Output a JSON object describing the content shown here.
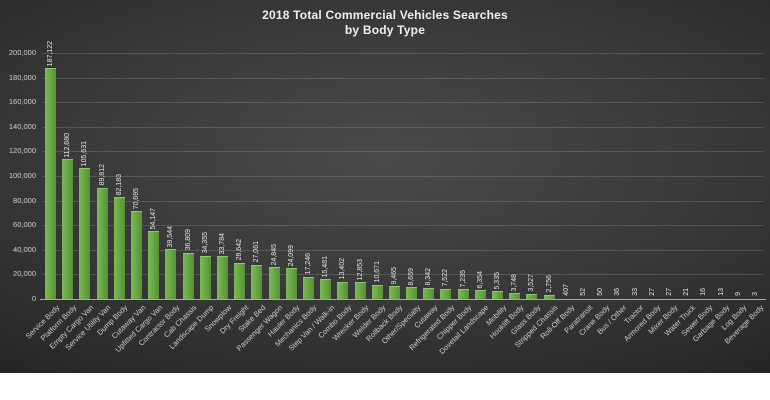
{
  "chart_data": {
    "type": "bar",
    "title_line1": "2018 Total Commercial Vehicles Searches",
    "title_line2": "by Body Type",
    "xlabel": "",
    "ylabel": "",
    "ylim": [
      0,
      200000
    ],
    "ytick_interval": 20000,
    "grid": true,
    "legend": "none",
    "bar_color": "#6AAA45",
    "background_color": "#3a3a3a",
    "text_color": "#cfcfcf",
    "categories": [
      "Service Body",
      "Platform Body",
      "Empty Cargo Van",
      "Service Utility Van",
      "Dump Body",
      "Cutaway Van",
      "Upfitted Cargo Van",
      "Contractor Body",
      "Cab Chassis",
      "Landscape Dump",
      "Snowplow",
      "Dry Freight",
      "Stake Bed",
      "Passenger Wagon",
      "Hauler Body",
      "Mechanics Body",
      "Step Van / Walk-in",
      "Combo Body",
      "Wrecker Body",
      "Welder Body",
      "Rollback Body",
      "Other/Specialty",
      "Cutaway",
      "Refrigerated Body",
      "Chipper Body",
      "Dovetail Landscape",
      "Mobility",
      "Hooklift Body",
      "Glass Body",
      "Stripped Chassis",
      "Roll-Off Body",
      "Paratransit",
      "Crane Body",
      "Bus / Other",
      "Tractor",
      "Armored Body",
      "Mixer Body",
      "Water Truck",
      "Sewer Body",
      "Garbage Body",
      "Log Body",
      "Beverage Body"
    ],
    "values": [
      187122,
      112680,
      105631,
      89812,
      82183,
      70695,
      54147,
      39544,
      36809,
      34355,
      33784,
      28642,
      27061,
      24845,
      24099,
      17246,
      15481,
      13402,
      12853,
      10671,
      9465,
      8659,
      8342,
      7522,
      7235,
      6354,
      5335,
      3748,
      3527,
      2756,
      407,
      52,
      50,
      36,
      33,
      27,
      27,
      21,
      16,
      13,
      9,
      3
    ]
  }
}
